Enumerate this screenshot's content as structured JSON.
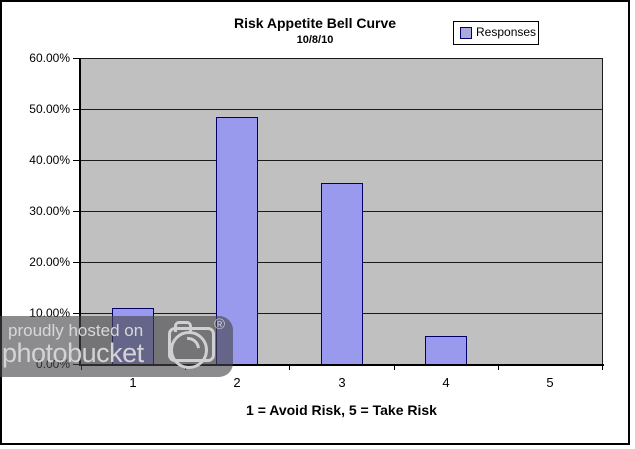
{
  "chart": {
    "title": "Risk Appetite Bell Curve",
    "subtitle": "10/8/10",
    "x_axis_title": "1 = Avoid Risk, 5 = Take Risk",
    "legend_label": "Responses"
  },
  "chart_data": {
    "type": "bar",
    "title": "Risk Appetite Bell Curve",
    "subtitle": "10/8/10",
    "categories": [
      "1",
      "2",
      "3",
      "4",
      "5"
    ],
    "series": [
      {
        "name": "Responses",
        "values": [
          10.9,
          48.4,
          35.5,
          5.5,
          0
        ]
      }
    ],
    "xlabel": "1 = Avoid Risk, 5 = Take Risk",
    "ylabel": "",
    "ylim": [
      0,
      60
    ],
    "ytick_step": 10,
    "ytick_labels": [
      "0.00%",
      "10.00%",
      "20.00%",
      "30.00%",
      "40.00%",
      "50.00%",
      "60.00%"
    ],
    "grid": true,
    "legend_position": "top-right",
    "colors": {
      "bar_fill": "#9999ee",
      "bar_border": "#000066",
      "legend_swatch": "#aaaadd",
      "plot_background": "#c0c0c0"
    }
  },
  "watermark": {
    "line1": "proudly hosted on",
    "line2": "photobucket",
    "registered_mark": "®"
  }
}
